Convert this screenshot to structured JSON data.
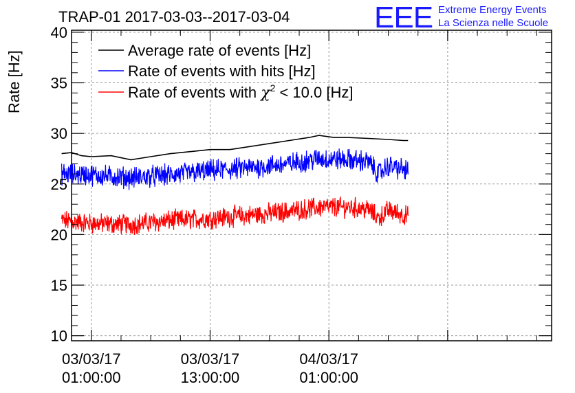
{
  "chart_data": {
    "type": "line",
    "title": "TRAP-01 2017-03-03--2017-03-04",
    "ylabel": "Rate [Hz]",
    "xlabel": "",
    "ylim": [
      9.5,
      40.2
    ],
    "xlim_hours": [
      -1.0,
      47.5
    ],
    "y_ticks": [
      10,
      15,
      20,
      25,
      30,
      35,
      40
    ],
    "x_ticks": [
      {
        "hour": 1,
        "line1": "03/03/17",
        "line2": "01:00:00"
      },
      {
        "hour": 13,
        "line1": "03/03/17",
        "line2": "13:00:00"
      },
      {
        "hour": 25,
        "line1": "04/03/17",
        "line2": "01:00:00"
      }
    ],
    "grid": true,
    "series": [
      {
        "name": "Average rate of events [Hz]",
        "color": "#000000",
        "noise": 0,
        "x": [
          -2.0,
          -1.0,
          0.0,
          1.0,
          3.0,
          5.0,
          7.0,
          9.0,
          11.0,
          13.0,
          15.0,
          17.0,
          19.0,
          21.0,
          23.0,
          24.0,
          25.5,
          27.0,
          29.0,
          31.0,
          32.5,
          33.0
        ],
        "values": [
          28.0,
          28.1,
          27.8,
          27.7,
          27.8,
          27.4,
          27.7,
          28.0,
          28.2,
          28.4,
          28.4,
          28.7,
          29.0,
          29.3,
          29.6,
          29.8,
          29.6,
          29.6,
          29.5,
          29.4,
          29.3,
          29.3
        ]
      },
      {
        "name": "Rate of events with hits [Hz]",
        "color": "#0000ff",
        "noise": 0.9,
        "x": [
          -2.0,
          1.0,
          5.0,
          9.0,
          13.0,
          17.0,
          21.0,
          24.0,
          27.0,
          29.0,
          30.0,
          31.0,
          33.0
        ],
        "values": [
          26.0,
          25.9,
          25.6,
          25.9,
          26.3,
          26.6,
          27.0,
          27.5,
          27.4,
          27.2,
          26.0,
          26.8,
          26.3
        ]
      },
      {
        "name": "Rate of events with χ² < 10.0 [Hz]",
        "color": "#ff0000",
        "noise": 0.85,
        "x": [
          -2.0,
          1.0,
          5.0,
          9.0,
          13.0,
          17.0,
          21.0,
          24.0,
          27.0,
          29.0,
          30.0,
          31.0,
          33.0
        ],
        "values": [
          21.4,
          21.1,
          21.0,
          21.4,
          21.6,
          21.9,
          22.3,
          22.7,
          22.7,
          22.5,
          21.6,
          22.4,
          21.8
        ]
      }
    ],
    "legend_position": "top-left"
  },
  "legend": {
    "line1": "Average rate of events [Hz]",
    "line2": "Rate of events with hits [Hz]",
    "line3_pre": "Rate of events with ",
    "line3_chi": "χ",
    "line3_sup": "2",
    "line3_post": " < 10.0 [Hz]"
  },
  "logo": {
    "mark": "EEE",
    "line1": "Extreme Energy Events",
    "line2": "La Scienza nelle Scuole"
  }
}
